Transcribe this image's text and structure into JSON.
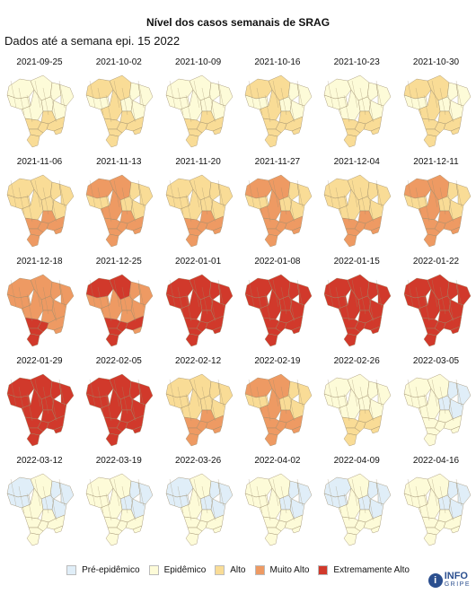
{
  "title": "Nível dos casos semanais de SRAG",
  "subtitle": "Dados até a semana epi. 15 2022",
  "colors": {
    "pre": "#e0eef8",
    "epi": "#fdfbd8",
    "alto": "#f9dc96",
    "muito": "#ee9a63",
    "extremo": "#d1392b",
    "border": "#9a8a6a"
  },
  "legend": [
    {
      "key": "pre",
      "label": "Pré-epidêmico"
    },
    {
      "key": "epi",
      "label": "Epidêmico"
    },
    {
      "key": "alto",
      "label": "Alto"
    },
    {
      "key": "muito",
      "label": "Muito Alto"
    },
    {
      "key": "extremo",
      "label": "Extremamente Alto"
    }
  ],
  "logo": {
    "word": "INFO",
    "sub": "GRIPE",
    "icon": "info-circle-icon"
  },
  "weeks": [
    {
      "date": "2021-09-25",
      "severity": 2
    },
    {
      "date": "2021-10-02",
      "severity": 2
    },
    {
      "date": "2021-10-09",
      "severity": 2
    },
    {
      "date": "2021-10-16",
      "severity": 2
    },
    {
      "date": "2021-10-23",
      "severity": 2
    },
    {
      "date": "2021-10-30",
      "severity": 2
    },
    {
      "date": "2021-11-06",
      "severity": 3
    },
    {
      "date": "2021-11-13",
      "severity": 3
    },
    {
      "date": "2021-11-20",
      "severity": 3
    },
    {
      "date": "2021-11-27",
      "severity": 3
    },
    {
      "date": "2021-12-04",
      "severity": 3
    },
    {
      "date": "2021-12-11",
      "severity": 3
    },
    {
      "date": "2021-12-18",
      "severity": 4
    },
    {
      "date": "2021-12-25",
      "severity": 4
    },
    {
      "date": "2022-01-01",
      "severity": 5
    },
    {
      "date": "2022-01-08",
      "severity": 6
    },
    {
      "date": "2022-01-15",
      "severity": 6
    },
    {
      "date": "2022-01-22",
      "severity": 6
    },
    {
      "date": "2022-01-29",
      "severity": 5
    },
    {
      "date": "2022-02-05",
      "severity": 5
    },
    {
      "date": "2022-02-12",
      "severity": 3
    },
    {
      "date": "2022-02-19",
      "severity": 3
    },
    {
      "date": "2022-02-26",
      "severity": 2
    },
    {
      "date": "2022-03-05",
      "severity": 1
    },
    {
      "date": "2022-03-12",
      "severity": 1
    },
    {
      "date": "2022-03-19",
      "severity": 1
    },
    {
      "date": "2022-03-26",
      "severity": 1
    },
    {
      "date": "2022-04-02",
      "severity": 1
    },
    {
      "date": "2022-04-09",
      "severity": 1
    },
    {
      "date": "2022-04-16",
      "severity": 1
    }
  ]
}
